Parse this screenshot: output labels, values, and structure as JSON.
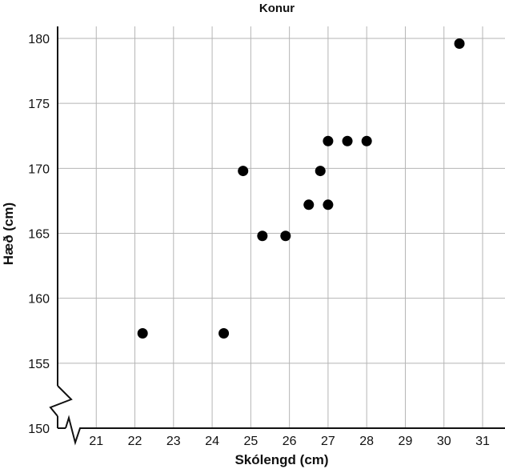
{
  "chart_data": {
    "type": "scatter",
    "title": "Konur",
    "xlabel": "Skólengd (cm)",
    "ylabel": "Hæð (cm)",
    "xlim": [
      20,
      31.5
    ],
    "ylim": [
      150,
      181
    ],
    "xticks": [
      21,
      22,
      23,
      24,
      25,
      26,
      27,
      28,
      29,
      30,
      31
    ],
    "yticks": [
      150,
      155,
      160,
      165,
      170,
      175,
      180
    ],
    "grid": true,
    "axis_break": true,
    "points": [
      {
        "x": 22.2,
        "y": 157.3
      },
      {
        "x": 24.3,
        "y": 157.3
      },
      {
        "x": 24.8,
        "y": 169.8
      },
      {
        "x": 25.3,
        "y": 164.8
      },
      {
        "x": 25.9,
        "y": 164.8
      },
      {
        "x": 26.5,
        "y": 167.2
      },
      {
        "x": 26.8,
        "y": 169.8
      },
      {
        "x": 27.0,
        "y": 172.1
      },
      {
        "x": 27.0,
        "y": 167.2
      },
      {
        "x": 27.5,
        "y": 172.1
      },
      {
        "x": 28.0,
        "y": 172.1
      },
      {
        "x": 30.4,
        "y": 179.6
      }
    ],
    "marker_color": "#000000",
    "grid_color": "#b5b5b5"
  }
}
